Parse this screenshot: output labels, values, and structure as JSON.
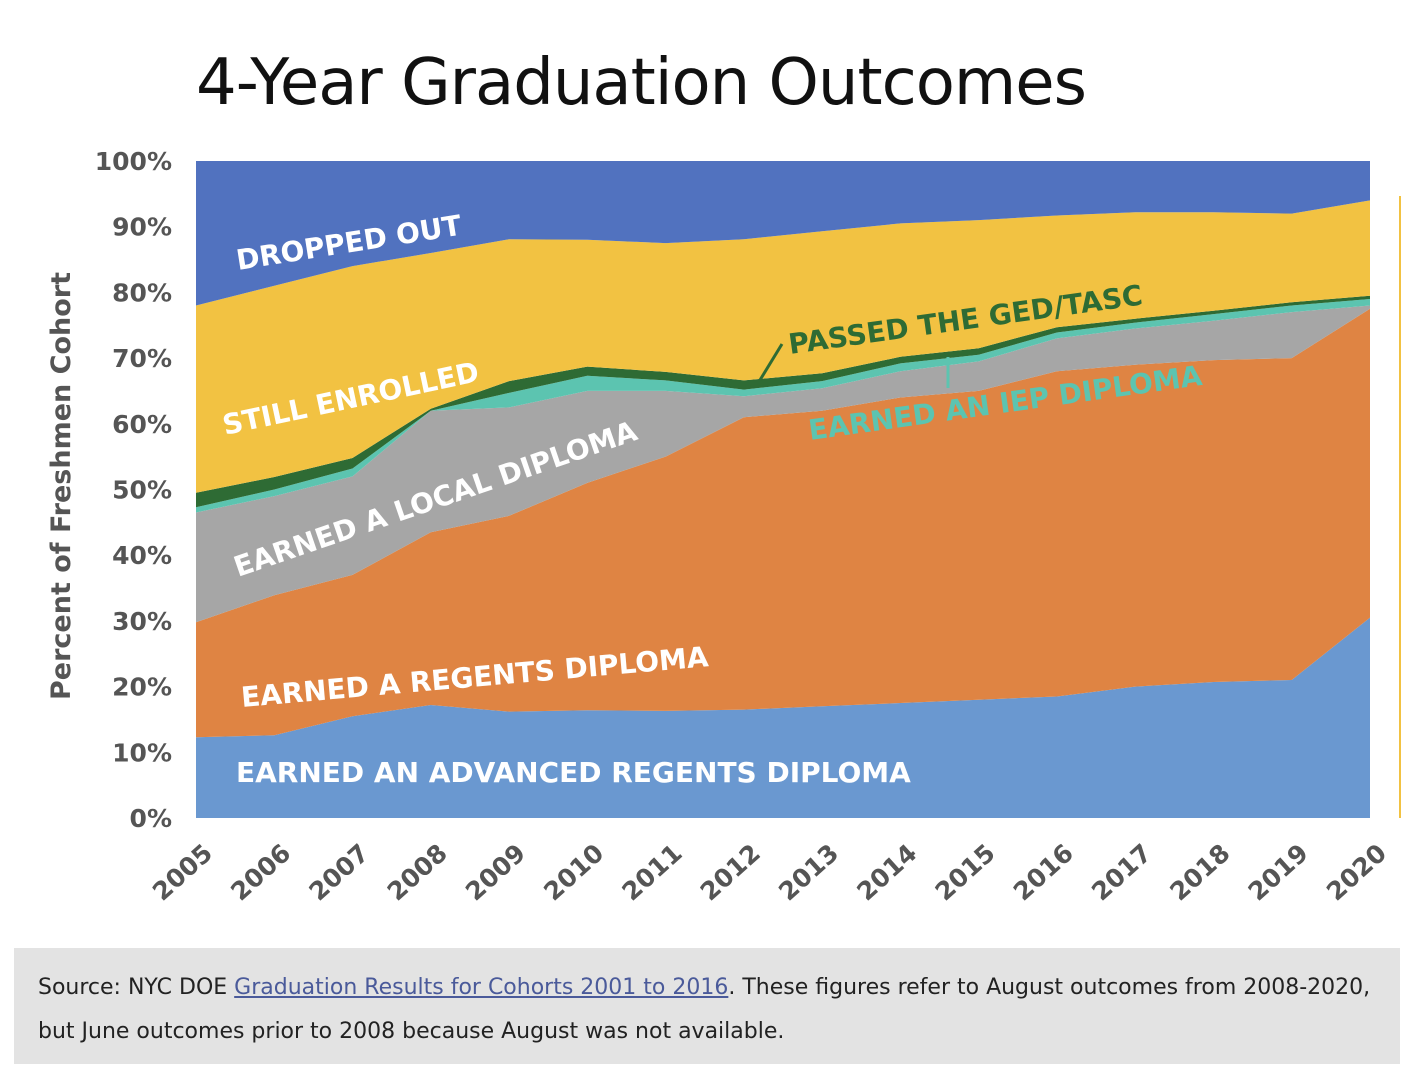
{
  "title": "4-Year Graduation Outcomes",
  "source": {
    "prefix": "Source: NYC DOE ",
    "link_text": "Graduation Results for Cohorts 2001 to 2016",
    "suffix": ". These figures refer to August outcomes from 2008-2020, but June outcomes prior to 2008 because August was not available."
  },
  "chart_data": {
    "type": "area",
    "stacked": true,
    "ylabel": "Percent of Freshmen Cohort",
    "xlabel": "",
    "ylim": [
      0,
      100
    ],
    "yticks": [
      "0%",
      "10%",
      "20%",
      "30%",
      "40%",
      "50%",
      "60%",
      "70%",
      "80%",
      "90%",
      "100%"
    ],
    "x": [
      "2005",
      "2006",
      "2007",
      "2008",
      "2009",
      "2010",
      "2011",
      "2012",
      "2013",
      "2014",
      "2015",
      "2016",
      "2017",
      "2018",
      "2019",
      "2020"
    ],
    "series": [
      {
        "name": "EARNED AN ADVANCED REGENTS DIPLOMA",
        "color": "#6a98d0",
        "text_color": "#ffffff",
        "values": [
          12.3,
          12.6,
          15.5,
          17.2,
          16.2,
          16.4,
          16.3,
          16.5,
          17.0,
          17.5,
          18.0,
          18.5,
          20.0,
          20.7,
          21.0,
          30.5
        ]
      },
      {
        "name": "EARNED A REGENTS DIPLOMA",
        "color": "#df8443",
        "text_color": "#ffffff",
        "values": [
          17.5,
          21.3,
          21.5,
          26.3,
          29.8,
          34.6,
          38.7,
          44.5,
          45.0,
          46.5,
          47.0,
          49.5,
          49.0,
          49.0,
          49.0,
          47.0
        ]
      },
      {
        "name": "EARNED A LOCAL DIPLOMA",
        "color": "#a6a6a6",
        "text_color": "#ffffff",
        "values": [
          16.7,
          15.1,
          15.0,
          18.5,
          16.5,
          14.0,
          10.0,
          3.2,
          3.4,
          4.0,
          4.5,
          5.0,
          5.5,
          6.0,
          7.0,
          0.5
        ]
      },
      {
        "name": "EARNED AN IEP DIPLOMA",
        "color": "#5cc4b0",
        "text_color": "#5cc4b0",
        "values": [
          0.8,
          1.0,
          1.2,
          0.0,
          2.2,
          2.3,
          1.6,
          1.0,
          1.1,
          1.2,
          1.0,
          0.9,
          0.9,
          1.0,
          1.0,
          1.0
        ]
      },
      {
        "name": "PASSED THE GED/TASC",
        "color": "#2e6b34",
        "text_color": "#2e6b34",
        "values": [
          2.2,
          1.9,
          1.6,
          0.3,
          1.8,
          1.4,
          1.3,
          1.4,
          1.2,
          1.0,
          1.0,
          0.8,
          0.6,
          0.5,
          0.5,
          0.5
        ]
      },
      {
        "name": "STILL ENROLLED",
        "color": "#f2c242",
        "text_color": "#ffffff",
        "values": [
          28.5,
          29.1,
          29.2,
          23.7,
          21.6,
          19.3,
          19.6,
          21.5,
          21.6,
          20.3,
          19.5,
          17.0,
          16.2,
          15.0,
          13.5,
          14.5
        ]
      },
      {
        "name": "DROPPED OUT",
        "color": "#5172bf",
        "text_color": "#ffffff",
        "values": [
          22.0,
          19.0,
          16.0,
          14.0,
          11.9,
          12.0,
          12.5,
          11.9,
          10.7,
          9.5,
          9.0,
          8.3,
          7.8,
          7.8,
          8.0,
          6.0
        ]
      }
    ]
  }
}
